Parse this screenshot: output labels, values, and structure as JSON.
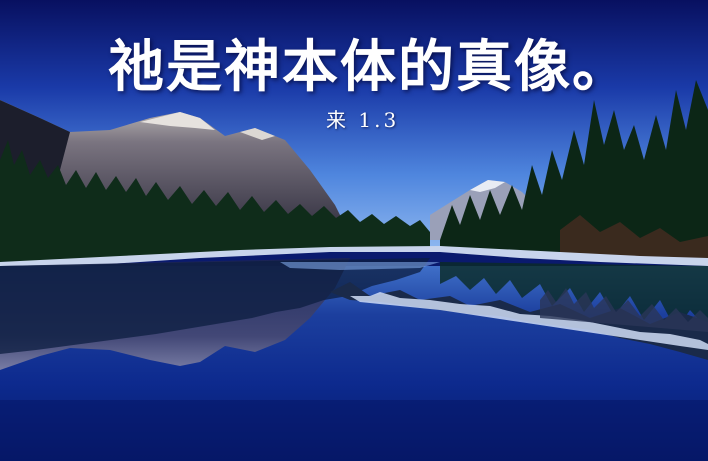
{
  "slide": {
    "title": "祂是神本体的真像。",
    "reference": "来 1.3"
  },
  "colors": {
    "sky_top": "#0a1670",
    "sky_bottom": "#5a8fe0",
    "mountain": "#6c6c78",
    "forest": "#0e2a18",
    "water": "#0b2a9a",
    "text": "#ffffff"
  }
}
